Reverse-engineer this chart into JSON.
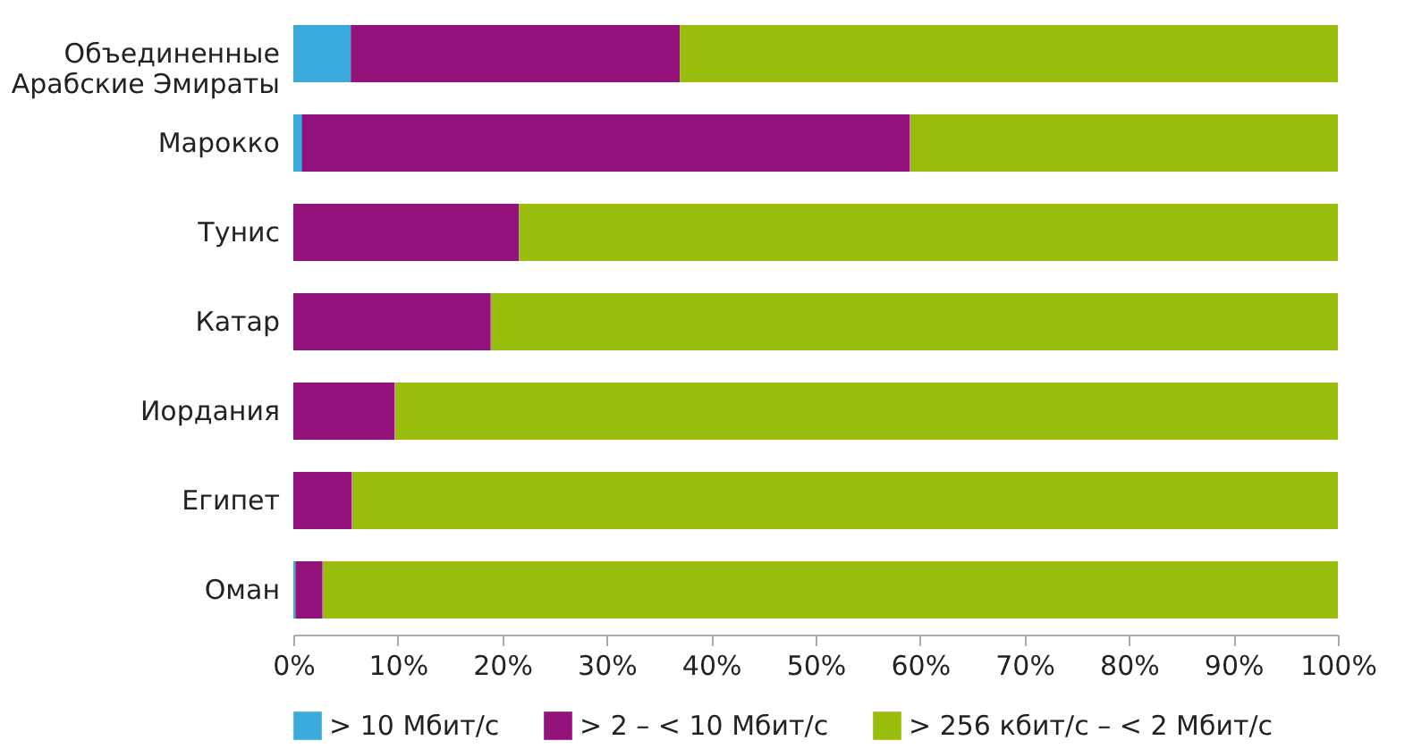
{
  "chart_data": {
    "type": "bar",
    "orientation": "horizontal",
    "stacked": true,
    "categories": [
      "Объединенные\nАрабские Эмираты",
      "Марокко",
      "Тунис",
      "Катар",
      "Иордания",
      "Египет",
      "Оман"
    ],
    "series": [
      {
        "name": "> 10 Мбит/с",
        "color": "#3aabdc",
        "values": [
          5.5,
          0.8,
          0,
          0,
          0,
          0,
          0.2
        ]
      },
      {
        "name": "> 2 – < 10 Мбит/с",
        "color": "#92117b",
        "values": [
          31.5,
          58.2,
          21.6,
          18.9,
          9.7,
          5.6,
          2.6
        ]
      },
      {
        "name": "> 256 кбит/с – < 2 Мбит/с",
        "color": "#99bd0d",
        "values": [
          63.0,
          41.0,
          78.4,
          81.1,
          90.3,
          94.4,
          97.2
        ]
      }
    ],
    "xlim": [
      0,
      100
    ],
    "xticks": [
      {
        "value": 0,
        "label": "0%"
      },
      {
        "value": 10,
        "label": "10%"
      },
      {
        "value": 20,
        "label": "20%"
      },
      {
        "value": 30,
        "label": "30%"
      },
      {
        "value": 40,
        "label": "40%"
      },
      {
        "value": 50,
        "label": "50%"
      },
      {
        "value": 60,
        "label": "60%"
      },
      {
        "value": 70,
        "label": "70%"
      },
      {
        "value": 80,
        "label": "80%"
      },
      {
        "value": 90,
        "label": "90%"
      },
      {
        "value": 100,
        "label": "100%"
      }
    ],
    "grid": false,
    "legend": "bottom"
  }
}
